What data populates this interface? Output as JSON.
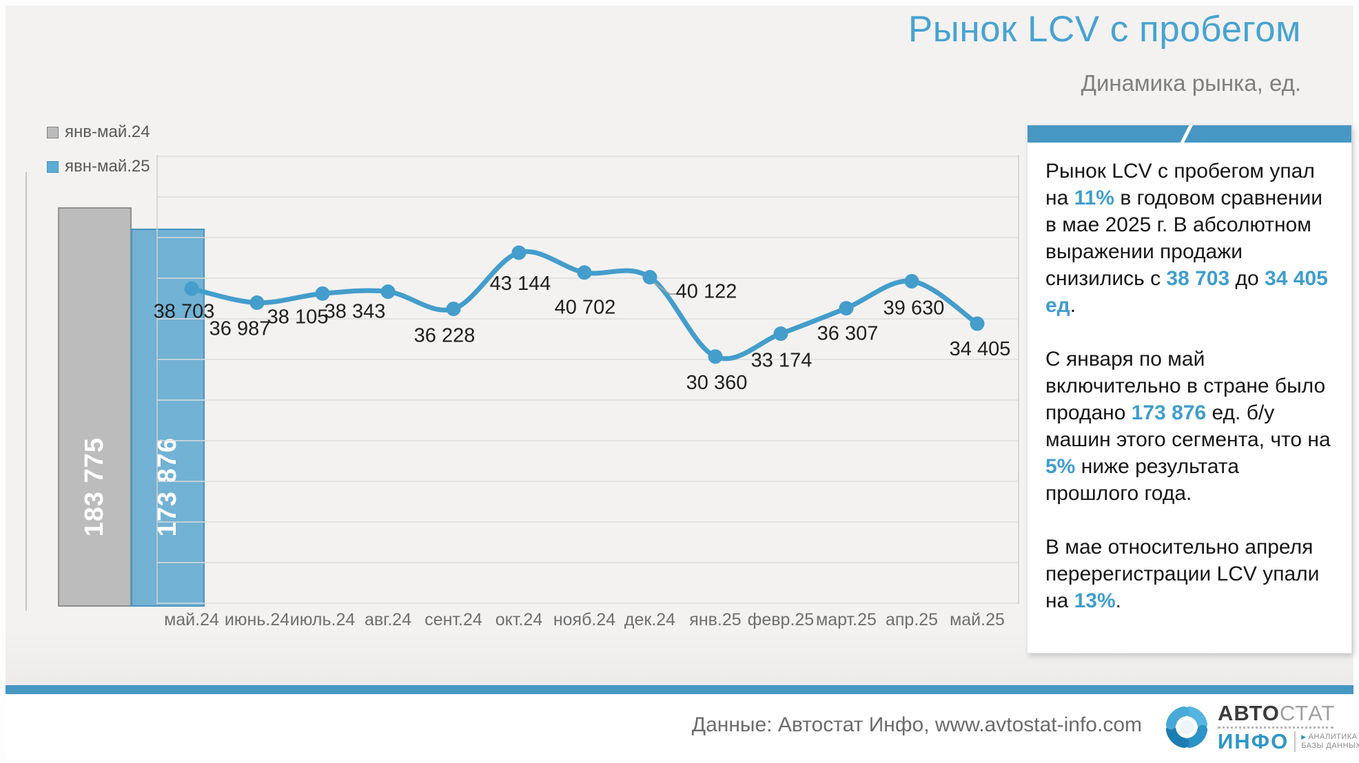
{
  "title": "Рынок LCV с пробегом",
  "subtitle": "Динамика рынка, ед.",
  "legend": [
    {
      "label": "янв-май.24",
      "color": "#bcbcbc"
    },
    {
      "label": "явн-май.25",
      "color": "#5badd7"
    }
  ],
  "chart_data": [
    {
      "type": "bar",
      "categories": [
        "янв-май.24",
        "явн-май.25"
      ],
      "values": [
        183775,
        173876
      ],
      "labels": [
        "183 775",
        "173 876"
      ],
      "colors": [
        "#bcbcbc",
        "#72b2d4"
      ],
      "ylim": [
        0,
        200000
      ],
      "grid": "off"
    },
    {
      "type": "line",
      "categories": [
        "май.24",
        "июнь.24",
        "июль.24",
        "авг.24",
        "сент.24",
        "окт.24",
        "нояб.24",
        "дек.24",
        "янв.25",
        "февр.25",
        "март.25",
        "апр.25",
        "май.25"
      ],
      "values": [
        38703,
        36987,
        38105,
        38343,
        36228,
        43144,
        40702,
        40122,
        30360,
        33174,
        36307,
        39630,
        34405
      ],
      "labels": [
        "38 703",
        "36 987",
        "38 105",
        "38 343",
        "36 228",
        "43 144",
        "40 702",
        "40 122",
        "30 360",
        "33 174",
        "36 307",
        "39 630",
        "34 405"
      ],
      "color": "#449dcb",
      "ylim": [
        0,
        55000
      ],
      "grid_step": 5000,
      "grid": "horizontal",
      "legend_position": "top-left"
    }
  ],
  "sidebar": {
    "paragraphs": [
      [
        {
          "t": "Рынок LCV с пробегом упал на "
        },
        {
          "t": "11%",
          "hl": true
        },
        {
          "t": " в годовом сравнении в мае 2025 г. В абсолютном выражении продажи снизились с "
        },
        {
          "t": "38 703",
          "hl": true
        },
        {
          "t": " до "
        },
        {
          "t": "34 405 ед",
          "hl": true
        },
        {
          "t": "."
        }
      ],
      [
        {
          "t": "С января по май включительно в стране было продано "
        },
        {
          "t": "173 876",
          "hl": true
        },
        {
          "t": " ед. б/у машин этого сегмента, что на "
        },
        {
          "t": "5%",
          "hl": true
        },
        {
          "t": " ниже результата прошлого года."
        }
      ],
      [
        {
          "t": "В мае относительно апреля перерегистрации LCV упали на "
        },
        {
          "t": "13%",
          "hl": true
        },
        {
          "t": "."
        }
      ]
    ]
  },
  "footer": {
    "source": "Данные: Автостат Инфо, www.avtostat-info.com",
    "logo": {
      "part1": "АВТО",
      "part2": "СТАТ",
      "part3": "ИНФО",
      "tagline1": "АНАЛИТИКА",
      "tagline2": "БАЗЫ ДАННЫХ"
    }
  },
  "colors": {
    "accent": "#449dcb",
    "divider": "#4697c3",
    "gray_bar": "#bcbcbc",
    "blue_bar": "#72b2d4",
    "chart_bg": "#f3f2f1",
    "gridline": "#dcdcdc"
  }
}
